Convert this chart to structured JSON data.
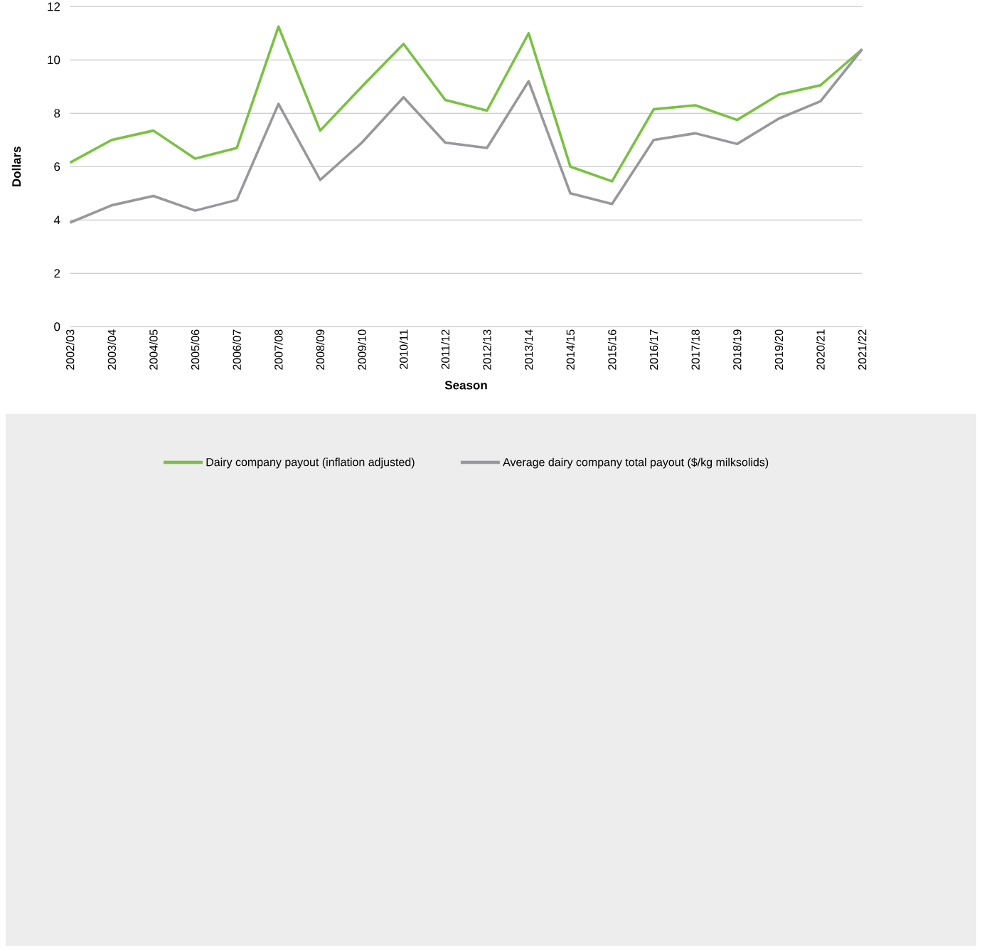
{
  "chart_data": {
    "type": "line",
    "xlabel": "Season",
    "ylabel": "Dollars",
    "categories": [
      "2002/03",
      "2003/04",
      "2004/05",
      "2005/06",
      "2006/07",
      "2007/08",
      "2008/09",
      "2009/10",
      "2010/11",
      "2011/12",
      "2012/13",
      "2013/14",
      "2014/15",
      "2015/16",
      "2016/17",
      "2017/18",
      "2018/19",
      "2019/20",
      "2020/21",
      "2021/22"
    ],
    "series": [
      {
        "name": "Dairy company payout (inflation adjusted)",
        "color": "#7ac143",
        "values": [
          6.15,
          7.0,
          7.35,
          6.3,
          6.7,
          11.25,
          7.35,
          9.0,
          10.6,
          8.5,
          8.1,
          11.0,
          6.0,
          5.45,
          8.15,
          8.3,
          7.75,
          8.7,
          9.05,
          10.4
        ]
      },
      {
        "name": "Average dairy company total payout ($/kg milksolids)",
        "color": "#98989c",
        "values": [
          3.9,
          4.55,
          4.9,
          4.35,
          4.75,
          8.35,
          5.5,
          6.9,
          8.6,
          6.9,
          6.7,
          9.2,
          5.0,
          4.6,
          7.0,
          7.25,
          6.85,
          7.8,
          8.45,
          10.4
        ]
      }
    ],
    "ylim": [
      0,
      12
    ],
    "yticks": [
      0,
      2,
      4,
      6,
      8,
      10,
      12
    ],
    "grid": "y",
    "legend": "bottom",
    "marker": "none",
    "line_style": "solid"
  }
}
